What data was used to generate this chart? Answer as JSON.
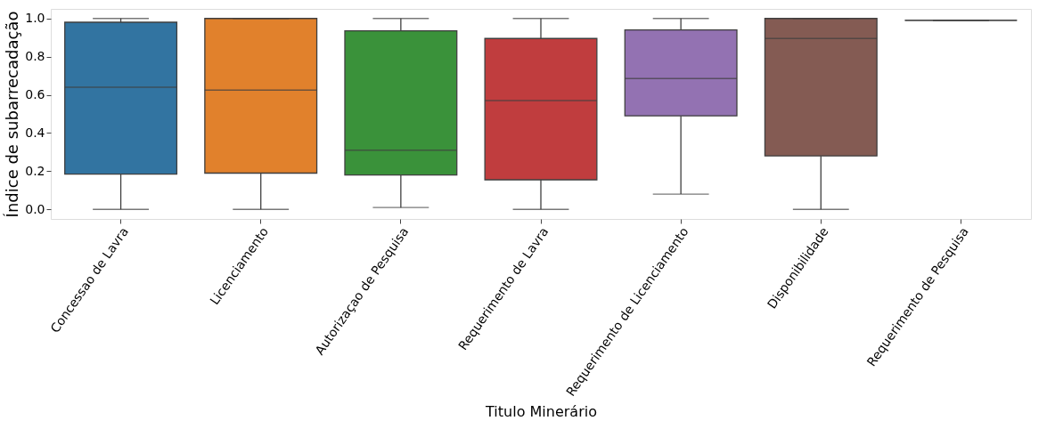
{
  "chart_data": {
    "type": "box",
    "xlabel": "Titulo Minerário",
    "ylabel": "Índice de subarrecadação",
    "categories": [
      "Concessao de Lavra",
      "Licenciamento",
      "Autorizaçao de Pesquisa",
      "Requerimento de Lavra",
      "Requerimento de Licenciamento",
      "Disponibilidade",
      "Requerimento de Pesquisa"
    ],
    "colors": [
      "#3274a1",
      "#e1812c",
      "#3a923a",
      "#c03d3e",
      "#9372b2",
      "#845b53",
      "#3f3f3f"
    ],
    "boxes": [
      {
        "low": 0.0,
        "q1": 0.185,
        "median": 0.64,
        "q3": 0.98,
        "high": 1.0
      },
      {
        "low": 0.0,
        "q1": 0.19,
        "median": 0.625,
        "q3": 1.0,
        "high": 1.0
      },
      {
        "low": 0.01,
        "q1": 0.18,
        "median": 0.31,
        "q3": 0.935,
        "high": 1.0
      },
      {
        "low": 0.0,
        "q1": 0.155,
        "median": 0.57,
        "q3": 0.895,
        "high": 1.0
      },
      {
        "low": 0.08,
        "q1": 0.49,
        "median": 0.685,
        "q3": 0.94,
        "high": 1.0
      },
      {
        "low": 0.0,
        "q1": 0.28,
        "median": 0.895,
        "q3": 1.0,
        "high": 1.0
      },
      {
        "low": 0.99,
        "q1": 0.99,
        "median": 0.99,
        "q3": 0.99,
        "high": 0.99
      }
    ],
    "ylim": [
      -0.05,
      1.05
    ],
    "yticks": [
      {
        "value": 0,
        "label": "0.0"
      },
      0.2,
      0.4,
      0.6,
      0.8,
      {
        "value": 1,
        "label": "1.0"
      }
    ],
    "grid": false
  }
}
